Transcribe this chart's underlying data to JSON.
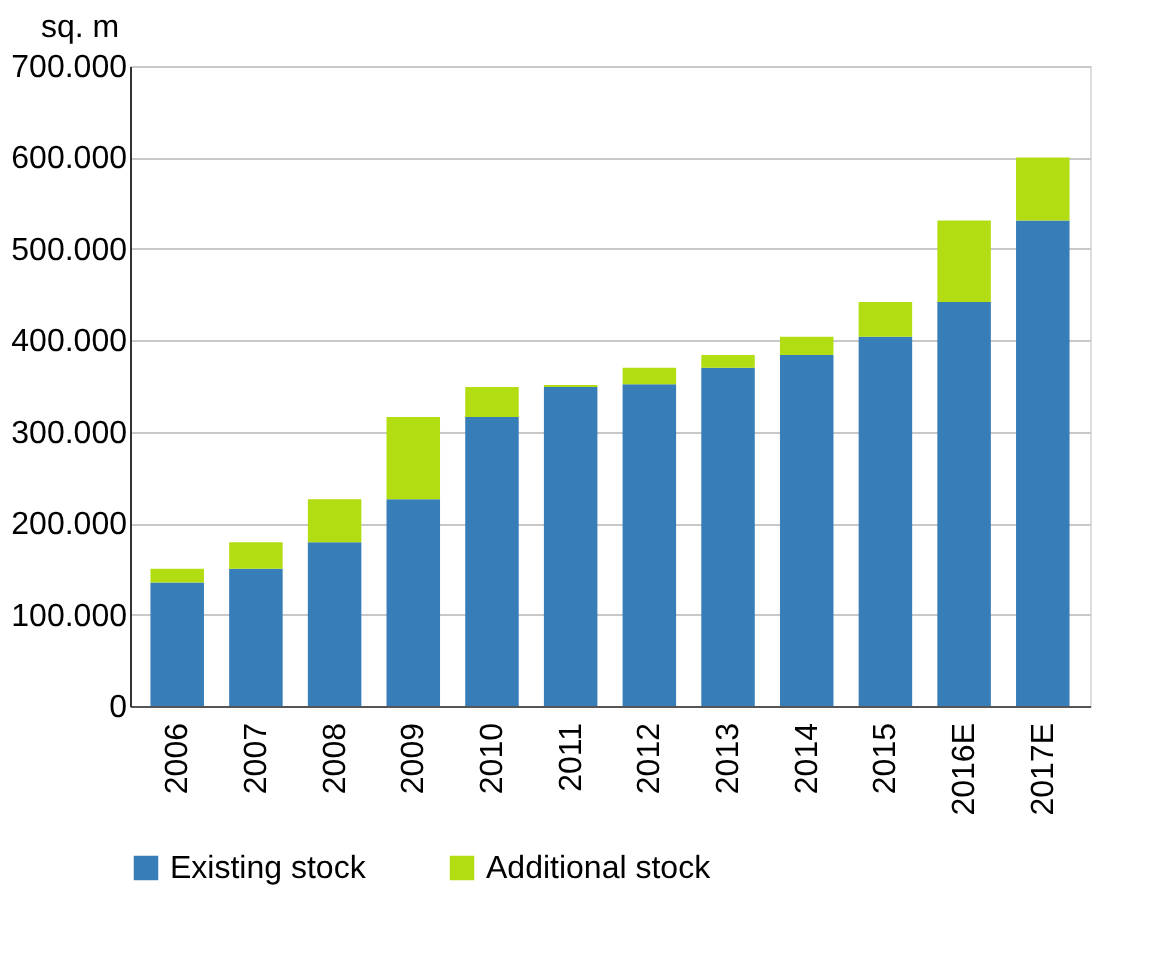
{
  "chart_data": {
    "type": "bar",
    "stacked": true,
    "ylabel": "sq. m",
    "categories": [
      "2006",
      "2007",
      "2008",
      "2009",
      "2010",
      "2011",
      "2012",
      "2013",
      "2014",
      "2015",
      "2016E",
      "2017E"
    ],
    "series": [
      {
        "name": "Existing stock",
        "color": "#377eb8",
        "values": [
          135000,
          150000,
          179000,
          226000,
          316000,
          349000,
          352000,
          370000,
          384000,
          404000,
          442000,
          531000
        ]
      },
      {
        "name": "Additional stock",
        "color": "#b2dd12",
        "values": [
          15000,
          29000,
          47000,
          90000,
          33000,
          2000,
          18000,
          14000,
          20000,
          38000,
          89000,
          69000
        ]
      }
    ],
    "ylim": [
      0,
      700000
    ],
    "yticks": [
      0,
      {
        "value": 100000,
        "label": "100.000"
      },
      {
        "value": 200000,
        "label": "200.000"
      },
      {
        "value": 300000,
        "label": "300.000"
      },
      {
        "value": 400000,
        "label": "400.000"
      },
      {
        "value": 500000,
        "label": "500.000"
      },
      {
        "value": 600000,
        "label": "600.000"
      },
      {
        "value": 700000,
        "label": "700.000"
      }
    ],
    "grid": "y",
    "legend": "bottom"
  }
}
